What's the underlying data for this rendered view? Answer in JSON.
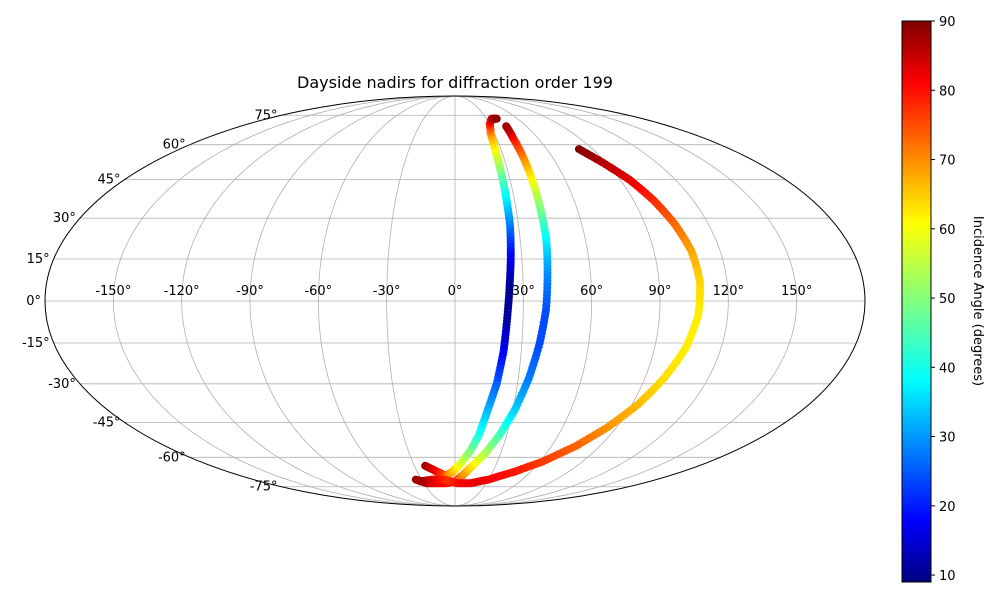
{
  "chart_data": {
    "type": "scatter",
    "projection": "mollweide",
    "title": "Dayside nadirs for diffraction order 199",
    "grid": true,
    "longitude_ticks": [
      "-150°",
      "-120°",
      "-90°",
      "-60°",
      "-30°",
      "0°",
      "30°",
      "60°",
      "90°",
      "120°",
      "150°"
    ],
    "latitude_ticks": [
      "75°",
      "60°",
      "45°",
      "30°",
      "15°",
      "0°",
      "-15°",
      "-30°",
      "-45°",
      "-60°",
      "-75°"
    ],
    "colorbar": {
      "label": "Incidence Angle (degrees)",
      "colormap": "jet",
      "range": [
        9,
        90
      ],
      "ticks": [
        "90",
        "80",
        "70",
        "60",
        "50",
        "40",
        "30",
        "20",
        "10"
      ]
    },
    "series": [
      {
        "points": [
          {
            "lon": -22,
            "lat": -64,
            "inc": 88
          },
          {
            "lon": -14,
            "lat": -67,
            "inc": 80
          },
          {
            "lon": -8,
            "lat": -69,
            "inc": 74
          },
          {
            "lon": -2,
            "lat": -67,
            "inc": 66
          },
          {
            "lon": 4,
            "lat": -63,
            "inc": 58
          },
          {
            "lon": 10,
            "lat": -57,
            "inc": 50
          },
          {
            "lon": 14,
            "lat": -50,
            "inc": 42
          },
          {
            "lon": 17,
            "lat": -40,
            "inc": 34
          },
          {
            "lon": 20,
            "lat": -30,
            "inc": 27
          },
          {
            "lon": 22,
            "lat": -18,
            "inc": 19
          },
          {
            "lon": 23,
            "lat": -6,
            "inc": 12
          },
          {
            "lon": 24,
            "lat": 5,
            "inc": 10
          },
          {
            "lon": 25,
            "lat": 15,
            "inc": 17
          },
          {
            "lon": 26,
            "lat": 27,
            "inc": 28
          },
          {
            "lon": 26,
            "lat": 38,
            "inc": 38
          },
          {
            "lon": 26,
            "lat": 48,
            "inc": 48
          },
          {
            "lon": 26,
            "lat": 57,
            "inc": 58
          },
          {
            "lon": 27,
            "lat": 65,
            "inc": 67
          },
          {
            "lon": 30,
            "lat": 70,
            "inc": 76
          },
          {
            "lon": 35,
            "lat": 73,
            "inc": 84
          },
          {
            "lon": 40,
            "lat": 73,
            "inc": 89
          }
        ]
      },
      {
        "points": [
          {
            "lon": -35,
            "lat": -71,
            "inc": 88
          },
          {
            "lon": -27,
            "lat": -73,
            "inc": 85
          },
          {
            "lon": -18,
            "lat": -73,
            "inc": 82
          },
          {
            "lon": -8,
            "lat": -73,
            "inc": 80
          },
          {
            "lon": 0,
            "lat": -72,
            "inc": 77
          },
          {
            "lon": 6,
            "lat": -69,
            "inc": 70
          },
          {
            "lon": 13,
            "lat": -64,
            "inc": 62
          },
          {
            "lon": 20,
            "lat": -58,
            "inc": 54
          },
          {
            "lon": 26,
            "lat": -50,
            "inc": 45
          },
          {
            "lon": 31,
            "lat": -40,
            "inc": 36
          },
          {
            "lon": 35,
            "lat": -28,
            "inc": 29
          },
          {
            "lon": 38,
            "lat": -15,
            "inc": 25
          },
          {
            "lon": 40,
            "lat": -3,
            "inc": 25
          },
          {
            "lon": 41,
            "lat": 10,
            "inc": 30
          },
          {
            "lon": 42,
            "lat": 22,
            "inc": 38
          },
          {
            "lon": 42,
            "lat": 33,
            "inc": 48
          },
          {
            "lon": 42,
            "lat": 44,
            "inc": 58
          },
          {
            "lon": 42,
            "lat": 54,
            "inc": 68
          },
          {
            "lon": 42,
            "lat": 63,
            "inc": 78
          },
          {
            "lon": 43,
            "lat": 69,
            "inc": 87
          }
        ]
      },
      {
        "points": [
          {
            "lon": 81,
            "lat": 58,
            "inc": 90
          },
          {
            "lon": 88,
            "lat": 52,
            "inc": 86
          },
          {
            "lon": 95,
            "lat": 45,
            "inc": 82
          },
          {
            "lon": 100,
            "lat": 37,
            "inc": 77
          },
          {
            "lon": 104,
            "lat": 28,
            "inc": 72
          },
          {
            "lon": 107,
            "lat": 18,
            "inc": 67
          },
          {
            "lon": 108,
            "lat": 7,
            "inc": 63
          },
          {
            "lon": 107,
            "lat": -5,
            "inc": 61
          },
          {
            "lon": 104,
            "lat": -17,
            "inc": 61
          },
          {
            "lon": 99,
            "lat": -28,
            "inc": 62
          },
          {
            "lon": 93,
            "lat": -38,
            "inc": 65
          },
          {
            "lon": 85,
            "lat": -47,
            "inc": 68
          },
          {
            "lon": 75,
            "lat": -55,
            "inc": 72
          },
          {
            "lon": 62,
            "lat": -62,
            "inc": 75
          },
          {
            "lon": 47,
            "lat": -67,
            "inc": 78
          },
          {
            "lon": 30,
            "lat": -71,
            "inc": 80
          },
          {
            "lon": 15,
            "lat": -73,
            "inc": 82
          },
          {
            "lon": 2,
            "lat": -73,
            "inc": 80
          },
          {
            "lon": -10,
            "lat": -71,
            "inc": 76
          },
          {
            "lon": -20,
            "lat": -71,
            "inc": 80
          },
          {
            "lon": -32,
            "lat": -72,
            "inc": 87
          }
        ]
      }
    ]
  }
}
